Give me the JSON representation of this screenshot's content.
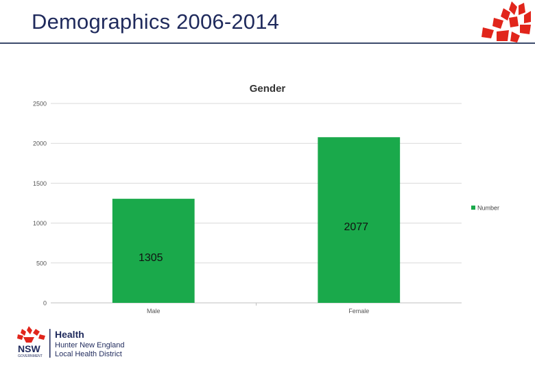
{
  "slide": {
    "title": "Demographics 2006-2014"
  },
  "footer": {
    "nsw_label": "NSW",
    "gov_label": "GOVERNMENT",
    "line1": "Health",
    "line2": "Hunter New England",
    "line3": "Local Health District"
  },
  "colors": {
    "bar": "#1aa94b",
    "title_text": "#1f2a5c",
    "waratah": "#e1251b"
  },
  "chart_data": {
    "type": "bar",
    "title": "Gender",
    "categories": [
      "Male",
      "Female"
    ],
    "series": [
      {
        "name": "Number",
        "values": [
          1305,
          2077
        ]
      }
    ],
    "data_labels": [
      "1305",
      "2077"
    ],
    "ylim": [
      0,
      2500
    ],
    "yticks": [
      0,
      500,
      1000,
      1500,
      2000,
      2500
    ],
    "grid": true,
    "legend": "right",
    "xlabel": "",
    "ylabel": ""
  }
}
